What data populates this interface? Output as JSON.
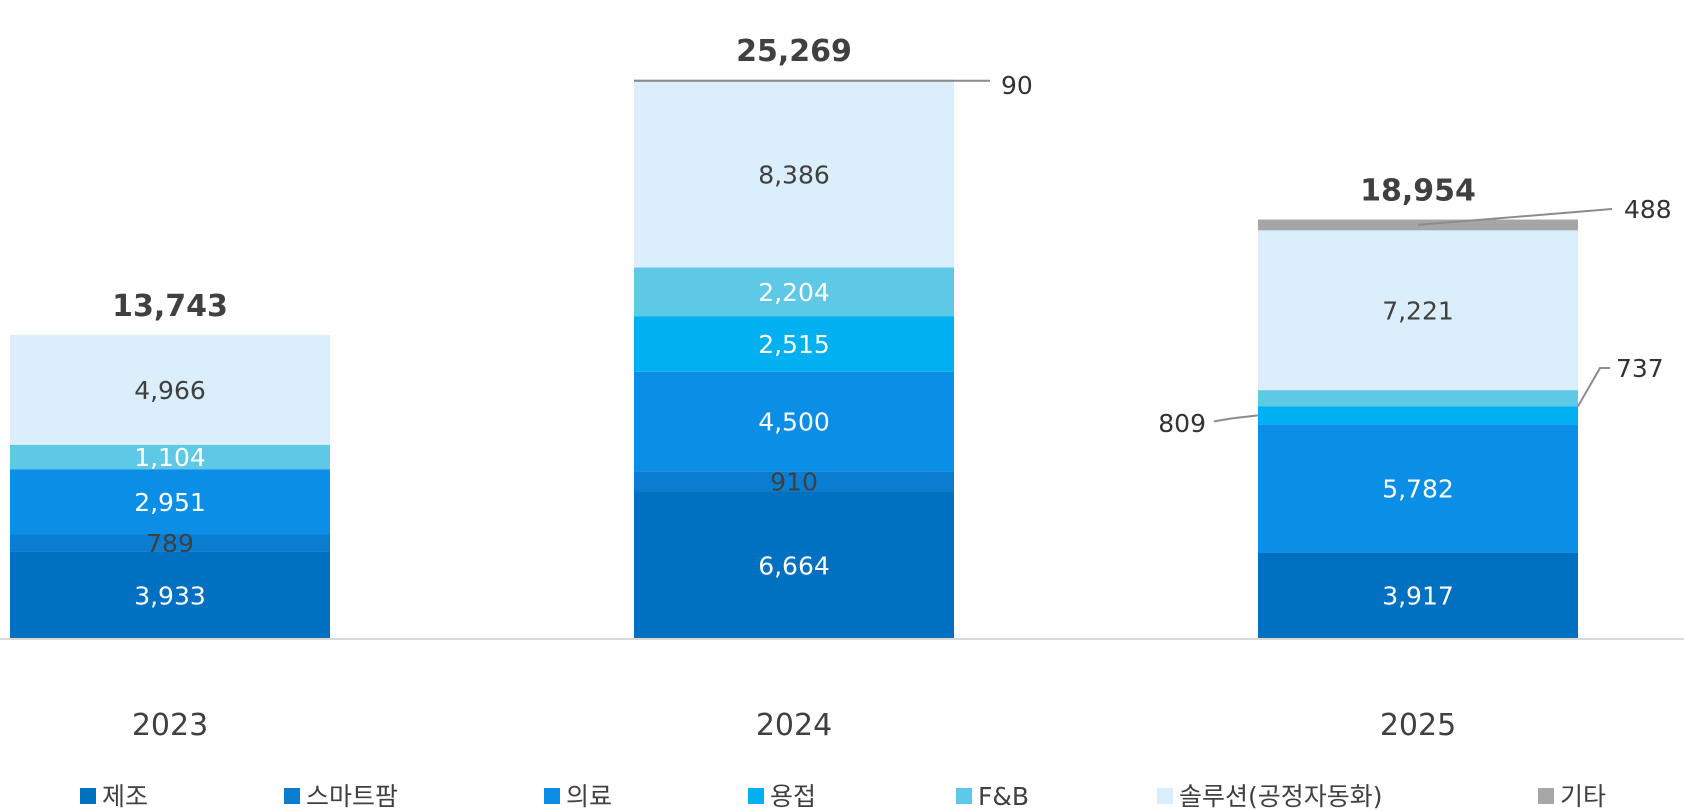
{
  "chart_data": {
    "type": "bar",
    "stacked": true,
    "categories": [
      "2023",
      "2024",
      "2025"
    ],
    "totals": [
      "13,743",
      "25,269",
      "18,954"
    ],
    "series": [
      {
        "name": "제조",
        "color": "#0070C0",
        "values": [
          3933,
          6664,
          3917
        ],
        "labels": [
          "3,933",
          "6,664",
          "3,917"
        ]
      },
      {
        "name": "스마트팜",
        "color": "#0B7DD1",
        "values": [
          789,
          910,
          0
        ],
        "labels": [
          "789",
          "910",
          ""
        ]
      },
      {
        "name": "의료",
        "color": "#0A8EE6",
        "values": [
          2951,
          4500,
          5782
        ],
        "labels": [
          "2,951",
          "4,500",
          "5,782"
        ]
      },
      {
        "name": "용접",
        "color": "#00B0F0",
        "values": [
          0,
          2515,
          809
        ],
        "labels": [
          "",
          "2,515",
          "809"
        ]
      },
      {
        "name": "F&B",
        "color": "#5DC9E6",
        "values": [
          1104,
          2204,
          737
        ],
        "labels": [
          "1,104",
          "2,204",
          "737"
        ]
      },
      {
        "name": "솔루션(공정자동화)",
        "color": "#DAEEFB",
        "values": [
          4966,
          8386,
          7221
        ],
        "labels": [
          "4,966",
          "8,386",
          "7,221"
        ]
      },
      {
        "name": "기타",
        "color": "#A6A6A6",
        "values": [
          0,
          90,
          488
        ],
        "labels": [
          "",
          "90",
          "488"
        ]
      }
    ],
    "label_colors": [
      "#ffffff",
      "#404040",
      "#ffffff",
      "#ffffff",
      "#ffffff",
      "#404040",
      "#404040"
    ],
    "legend_position": "bottom",
    "grid": false
  }
}
